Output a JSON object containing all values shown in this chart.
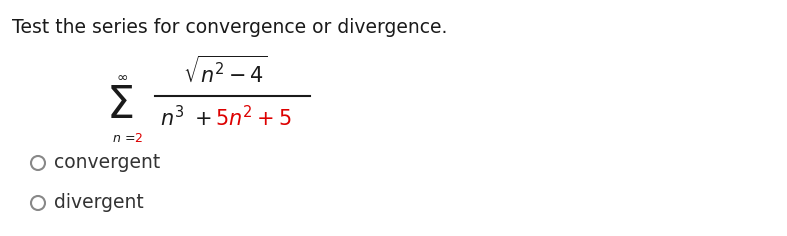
{
  "title": "Test the series for convergence or divergence.",
  "title_color": "#1a1a1a",
  "title_fontsize": 13.5,
  "background_color": "#ffffff",
  "options": [
    "convergent",
    "divergent"
  ],
  "option_color": "#333333",
  "circle_color": "#888888",
  "option_fontsize": 13.5,
  "red_color": "#dd0000",
  "black_color": "#1a1a1a",
  "sigma_fontsize": 32,
  "inf_fontsize": 10,
  "sub_fontsize": 9,
  "num_fontsize": 15,
  "den_fontsize": 15
}
